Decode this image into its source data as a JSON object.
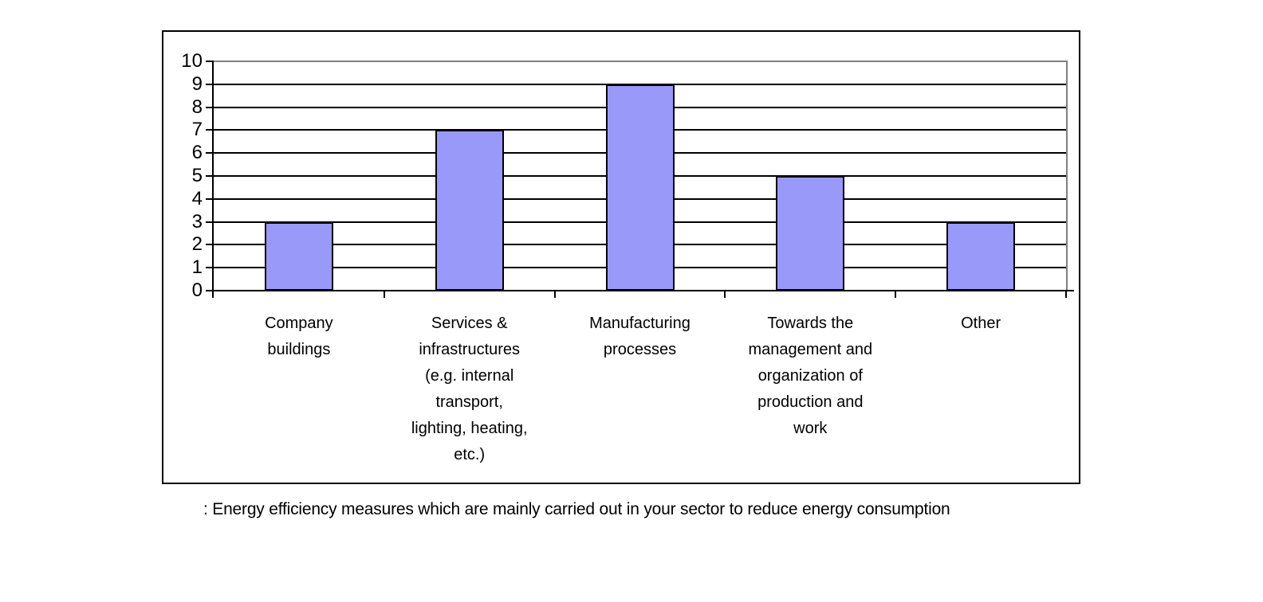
{
  "caption": ": Energy efficiency measures which are mainly carried out in your sector to reduce energy consumption",
  "chart_data": {
    "type": "bar",
    "title": "",
    "xlabel": "",
    "ylabel": "",
    "legend": "none",
    "grid": "horizontal",
    "categories": [
      "Company buildings",
      "Services & infrastructures (e.g. internal transport, lighting, heating, etc.)",
      "Manufacturing processes",
      "Towards the management and organization of production and work",
      "Other"
    ],
    "category_display": [
      [
        "Company",
        "buildings"
      ],
      [
        "Services &",
        "infrastructures",
        "(e.g. internal",
        "transport,",
        "lighting, heating,",
        "etc.)"
      ],
      [
        "Manufacturing",
        "processes"
      ],
      [
        "Towards the",
        "management and",
        "organization of",
        "production and",
        "work"
      ],
      [
        "Other"
      ]
    ],
    "values": [
      3,
      7,
      9,
      5,
      3
    ],
    "ylim": [
      0,
      10
    ],
    "ytick_step": 1,
    "yticks": [
      0,
      1,
      2,
      3,
      4,
      5,
      6,
      7,
      8,
      9,
      10
    ],
    "colors": {
      "bar_fill": "#9999FA",
      "bar_border": "#000000",
      "gridline": "#000000",
      "plot_border": "#808080",
      "axis": "#000000",
      "text": "#000000",
      "frame_border": "#000000"
    }
  }
}
